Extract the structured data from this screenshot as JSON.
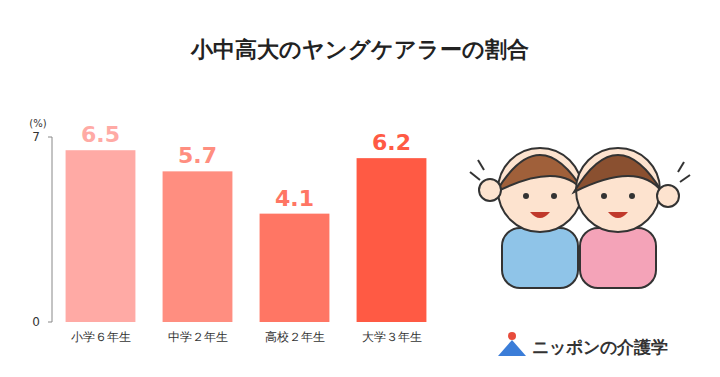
{
  "chart_data": {
    "type": "bar",
    "title": "小中高大のヤングケアラーの割合",
    "y_label": "(%)",
    "categories": [
      "小学６年生",
      "中学２年生",
      "高校２年生",
      "大学３年生"
    ],
    "values": [
      6.5,
      5.7,
      4.1,
      6.2
    ],
    "colors": [
      "#ffaaa5",
      "#ff8e80",
      "#ff7664",
      "#ff5a44"
    ],
    "ylim": [
      0,
      7
    ],
    "yticks": [
      0,
      7
    ],
    "grid": false,
    "data_labels": true,
    "logo": "ニッポンの介護学"
  }
}
